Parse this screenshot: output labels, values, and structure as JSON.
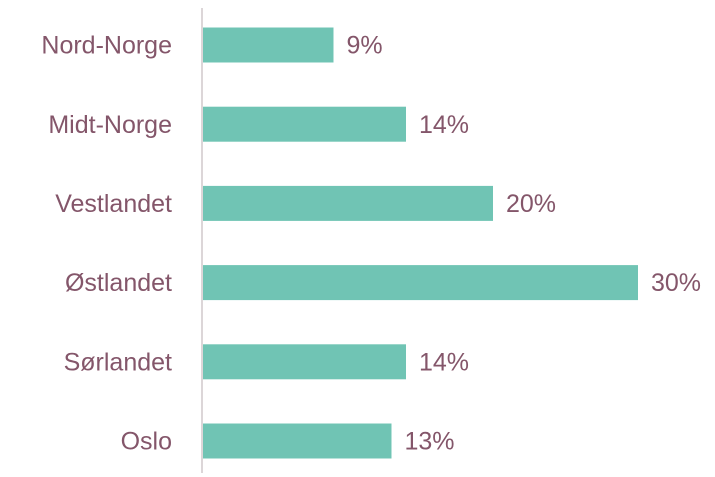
{
  "chart_data": {
    "type": "bar",
    "orientation": "horizontal",
    "categories": [
      "Nord-Norge",
      "Midt-Norge",
      "Vestlandet",
      "Østlandet",
      "Sørlandet",
      "Oslo"
    ],
    "values": [
      9,
      14,
      20,
      30,
      14,
      13
    ],
    "value_labels": [
      "9%",
      "14%",
      "20%",
      "30%",
      "14%",
      "13%"
    ],
    "color": "#70c4b4"
  }
}
